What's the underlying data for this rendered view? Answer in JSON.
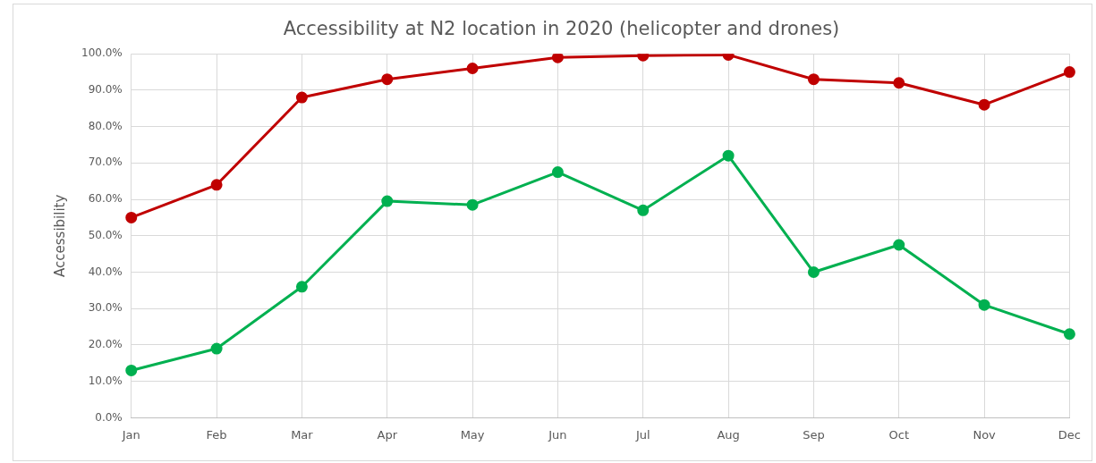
{
  "chart_data": {
    "type": "line",
    "title": "Accessibility at N2 location in 2020 (helicopter and drones)",
    "ylabel": "Accessibility",
    "categories": [
      "Jan",
      "Feb",
      "Mar",
      "Apr",
      "May",
      "Jun",
      "Jul",
      "Aug",
      "Sep",
      "Oct",
      "Nov",
      "Dec"
    ],
    "series": [
      {
        "color": "#c00000",
        "values": [
          55,
          64,
          88,
          93,
          96,
          99,
          99.5,
          99.7,
          93,
          92,
          86,
          95
        ]
      },
      {
        "color": "#00b050",
        "values": [
          13,
          19,
          36,
          59.5,
          58.5,
          67.5,
          57,
          72,
          40,
          47.5,
          31,
          23
        ]
      }
    ],
    "ylim": [
      0,
      100
    ],
    "yticks": [
      {
        "value": 0,
        "label": "0.0%"
      },
      {
        "value": 10,
        "label": "10.0%"
      },
      {
        "value": 20,
        "label": "20.0%"
      },
      {
        "value": 30,
        "label": "30.0%"
      },
      {
        "value": 40,
        "label": "40.0%"
      },
      {
        "value": 50,
        "label": "50.0%"
      },
      {
        "value": 60,
        "label": "60.0%"
      },
      {
        "value": 70,
        "label": "70.0%"
      },
      {
        "value": 80,
        "label": "80.0%"
      },
      {
        "value": 90,
        "label": "90.0%"
      },
      {
        "value": 100,
        "label": "100.0%"
      }
    ],
    "grid": true,
    "legend": false,
    "marker": "circle",
    "line_style": "solid"
  }
}
